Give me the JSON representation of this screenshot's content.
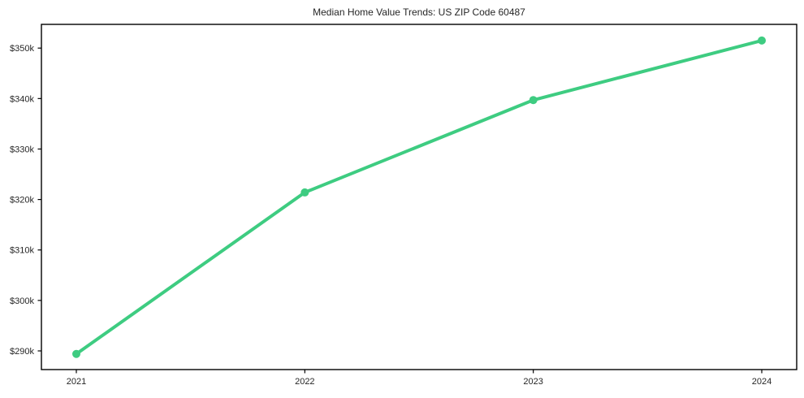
{
  "figure": {
    "background": "#ffffff",
    "plot_background": "#ffffff"
  },
  "chart_data": {
    "type": "line",
    "title": "Median Home Value Trends: US ZIP Code 60487",
    "categories": [
      "2021",
      "2022",
      "2023",
      "2024"
    ],
    "series": [
      {
        "name": "Median Home Value",
        "color": "#3ecc81",
        "values": [
          289400,
          321400,
          339700,
          351500
        ]
      }
    ],
    "xlabel": "",
    "ylabel": "",
    "ylim": [
      286300,
      354700
    ],
    "yticks": [
      {
        "value": 290000,
        "label": "$290k"
      },
      {
        "value": 300000,
        "label": "$300k"
      },
      {
        "value": 310000,
        "label": "$310k"
      },
      {
        "value": 320000,
        "label": "$320k"
      },
      {
        "value": 330000,
        "label": "$330k"
      },
      {
        "value": 340000,
        "label": "$340k"
      },
      {
        "value": 350000,
        "label": "$350k"
      }
    ],
    "grid": false,
    "legend_position": "none",
    "marker": "circle",
    "marker_radius": 5,
    "line_width": 4,
    "axis_color": "#000000",
    "text_color": "#262626"
  }
}
